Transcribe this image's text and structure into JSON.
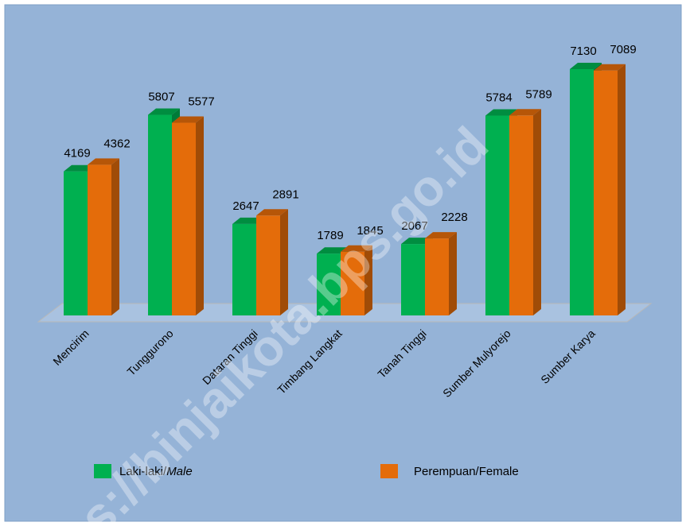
{
  "chart_data": {
    "type": "bar",
    "categories": [
      "Mencirim",
      "Tunggurono",
      "Dataran Tinggi",
      "Timbang Langkat",
      "Tanah Tinggi",
      "Sumber Mulyorejo",
      "Sumber Karya"
    ],
    "series": [
      {
        "name": "Laki-laki/Male",
        "color": "#00b050",
        "values": [
          4169,
          5807,
          2647,
          1789,
          2067,
          5784,
          7130
        ]
      },
      {
        "name": "Perempuan/Female",
        "color": "#e46c0a",
        "values": [
          4362,
          5577,
          2891,
          1845,
          2228,
          5789,
          7089
        ]
      }
    ],
    "watermark": "s://binjaikota.bps.go.id"
  }
}
